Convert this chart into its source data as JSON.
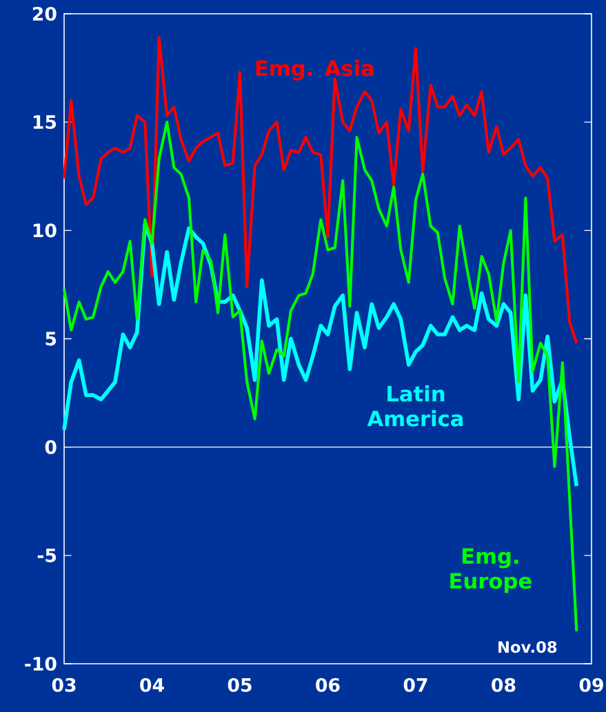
{
  "chart_data": {
    "type": "line",
    "x": [
      "2003-01",
      "2003-02",
      "2003-03",
      "2003-04",
      "2003-05",
      "2003-06",
      "2003-07",
      "2003-08",
      "2003-09",
      "2003-10",
      "2003-11",
      "2003-12",
      "2004-01",
      "2004-02",
      "2004-03",
      "2004-04",
      "2004-05",
      "2004-06",
      "2004-07",
      "2004-08",
      "2004-09",
      "2004-10",
      "2004-11",
      "2004-12",
      "2005-01",
      "2005-02",
      "2005-03",
      "2005-04",
      "2005-05",
      "2005-06",
      "2005-07",
      "2005-08",
      "2005-09",
      "2005-10",
      "2005-11",
      "2005-12",
      "2006-01",
      "2006-02",
      "2006-03",
      "2006-04",
      "2006-05",
      "2006-06",
      "2006-07",
      "2006-08",
      "2006-09",
      "2006-10",
      "2006-11",
      "2006-12",
      "2007-01",
      "2007-02",
      "2007-03",
      "2007-04",
      "2007-05",
      "2007-06",
      "2007-07",
      "2007-08",
      "2007-09",
      "2007-10",
      "2007-11",
      "2007-12",
      "2008-01",
      "2008-02",
      "2008-03",
      "2008-04",
      "2008-05",
      "2008-06",
      "2008-07",
      "2008-08",
      "2008-09",
      "2008-10",
      "2008-11"
    ],
    "series": [
      {
        "name": "Emg. Asia",
        "color": "#ff0000",
        "values": [
          12.4,
          16.0,
          12.5,
          11.2,
          11.5,
          13.3,
          13.6,
          13.8,
          13.6,
          13.8,
          15.3,
          15.0,
          7.9,
          18.9,
          15.3,
          15.7,
          14.2,
          13.2,
          13.8,
          14.1,
          14.3,
          14.5,
          13.0,
          13.1,
          17.3,
          7.4,
          13.0,
          13.5,
          14.6,
          15.0,
          12.8,
          13.7,
          13.6,
          14.3,
          13.6,
          13.5,
          9.7,
          17.0,
          15.0,
          14.6,
          15.7,
          16.4,
          16.0,
          14.5,
          15.0,
          12.1,
          15.6,
          14.6,
          18.4,
          12.7,
          16.7,
          15.7,
          15.7,
          16.2,
          15.3,
          15.8,
          15.3,
          16.4,
          13.6,
          14.8,
          13.5,
          13.8,
          14.2,
          13.0,
          12.5,
          12.9,
          12.4,
          9.5,
          9.8,
          5.8,
          4.8
        ]
      },
      {
        "name": "Latin America",
        "color": "#00ffff",
        "values": [
          0.8,
          3.0,
          4.0,
          2.4,
          2.4,
          2.2,
          2.6,
          3.0,
          5.2,
          4.6,
          5.3,
          10.3,
          9.4,
          6.6,
          9.0,
          6.8,
          8.5,
          10.1,
          9.7,
          9.4,
          8.4,
          6.7,
          6.7,
          7.0,
          6.3,
          5.5,
          3.1,
          7.7,
          5.6,
          5.9,
          3.1,
          5.0,
          3.8,
          3.1,
          4.2,
          5.6,
          5.2,
          6.5,
          7.0,
          3.6,
          6.2,
          4.6,
          6.6,
          5.5,
          6.0,
          6.6,
          5.9,
          3.8,
          4.4,
          4.7,
          5.6,
          5.2,
          5.2,
          6.0,
          5.4,
          5.6,
          5.4,
          7.1,
          5.9,
          5.6,
          6.6,
          6.2,
          2.2,
          7.0,
          2.6,
          3.1,
          5.1,
          2.1,
          3.1,
          0.5,
          -1.8
        ]
      },
      {
        "name": "Emg. Europe",
        "color": "#00ff00",
        "values": [
          7.3,
          5.4,
          6.7,
          5.9,
          6.0,
          7.4,
          8.1,
          7.6,
          8.1,
          9.5,
          5.9,
          10.5,
          9.4,
          13.3,
          15.0,
          12.9,
          12.6,
          11.5,
          6.7,
          9.1,
          8.6,
          6.2,
          9.8,
          6.0,
          6.3,
          3.0,
          1.3,
          4.9,
          3.4,
          4.5,
          4.2,
          6.3,
          7.0,
          7.1,
          8.0,
          10.5,
          9.1,
          9.2,
          12.3,
          6.5,
          14.3,
          12.8,
          12.3,
          11.0,
          10.2,
          12.0,
          9.1,
          7.6,
          11.4,
          12.6,
          10.2,
          9.9,
          7.8,
          6.6,
          10.2,
          8.3,
          6.4,
          8.8,
          8.0,
          5.8,
          8.5,
          10.0,
          3.0,
          11.5,
          3.5,
          4.8,
          4.2,
          -0.9,
          3.9,
          -2.3,
          -8.5
        ]
      }
    ],
    "xlim": [
      "2003-01",
      "2009-01"
    ],
    "xticks": [
      {
        "value": "2003-01",
        "label": "03"
      },
      {
        "value": "2004-01",
        "label": "04"
      },
      {
        "value": "2005-01",
        "label": "05"
      },
      {
        "value": "2006-01",
        "label": "06"
      },
      {
        "value": "2007-01",
        "label": "07"
      },
      {
        "value": "2008-01",
        "label": "08"
      },
      {
        "value": "2009-01",
        "label": "09"
      }
    ],
    "ylim": [
      -10,
      20
    ],
    "yticks": [
      -10,
      -5,
      0,
      5,
      10,
      15,
      20
    ],
    "ref_lines": [
      {
        "axis": "y",
        "value": 0,
        "color": "#ffffff"
      }
    ],
    "annotations": [
      "Nov.08"
    ]
  }
}
